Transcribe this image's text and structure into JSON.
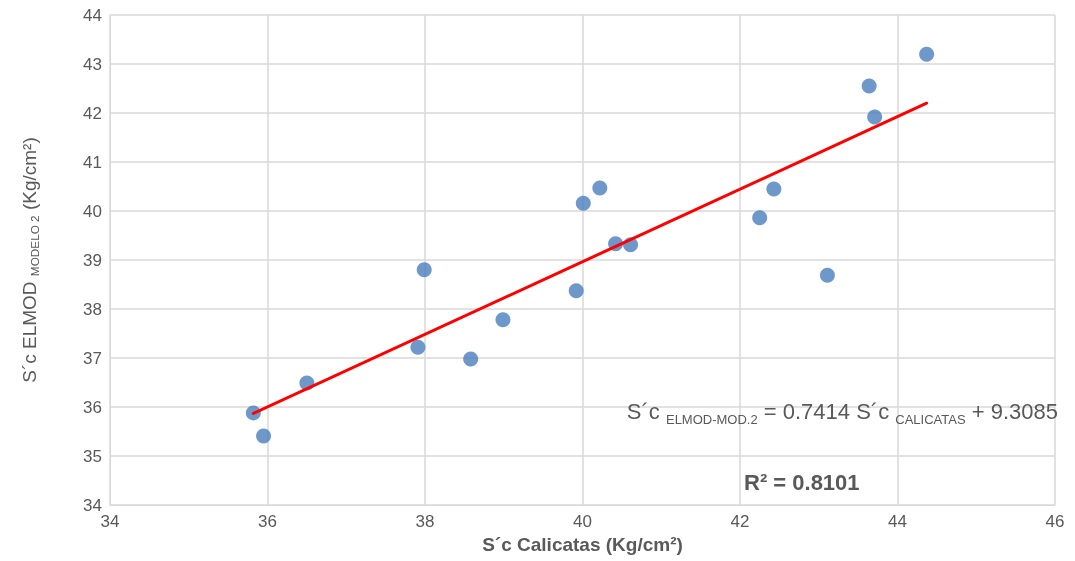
{
  "chart_data": {
    "type": "scatter",
    "xlabel": "S´c Calicatas (Kg/cm²)",
    "ylabel": "S´c ELMOD $_{MODELO 2}$ (Kg/cm²)",
    "xlim": [
      34,
      46
    ],
    "xticks": [
      34,
      36,
      38,
      40,
      42,
      44,
      46
    ],
    "ylim": [
      34,
      44
    ],
    "yticks": [
      34,
      35,
      36,
      37,
      38,
      39,
      40,
      41,
      42,
      43,
      44
    ],
    "grid": true,
    "marker": "circle",
    "series": [
      {
        "color": "#4a7ebb",
        "x": [
          35.82,
          35.95,
          36.5,
          37.91,
          37.99,
          38.58,
          38.99,
          39.92,
          40.01,
          40.22,
          40.42,
          40.61,
          42.25,
          42.43,
          43.11,
          43.64,
          43.71,
          44.37
        ],
        "values": [
          35.88,
          35.41,
          36.49,
          37.22,
          38.8,
          36.98,
          37.78,
          38.37,
          40.16,
          40.47,
          39.33,
          39.31,
          39.86,
          40.45,
          38.69,
          42.55,
          41.92,
          43.2
        ]
      },
      {
        "type": "line",
        "color": "#ff0000",
        "line_style": "solid",
        "marker": "none",
        "x": [
          35.82,
          44.37
        ],
        "values": [
          35.87,
          42.2
        ]
      }
    ],
    "annotations": [
      "S´c $_{ELMOD-MOD.2}$ = 0.7414 S´c $_{CALICATAS}$ + 9.3085",
      "R² = 0.8101"
    ]
  }
}
